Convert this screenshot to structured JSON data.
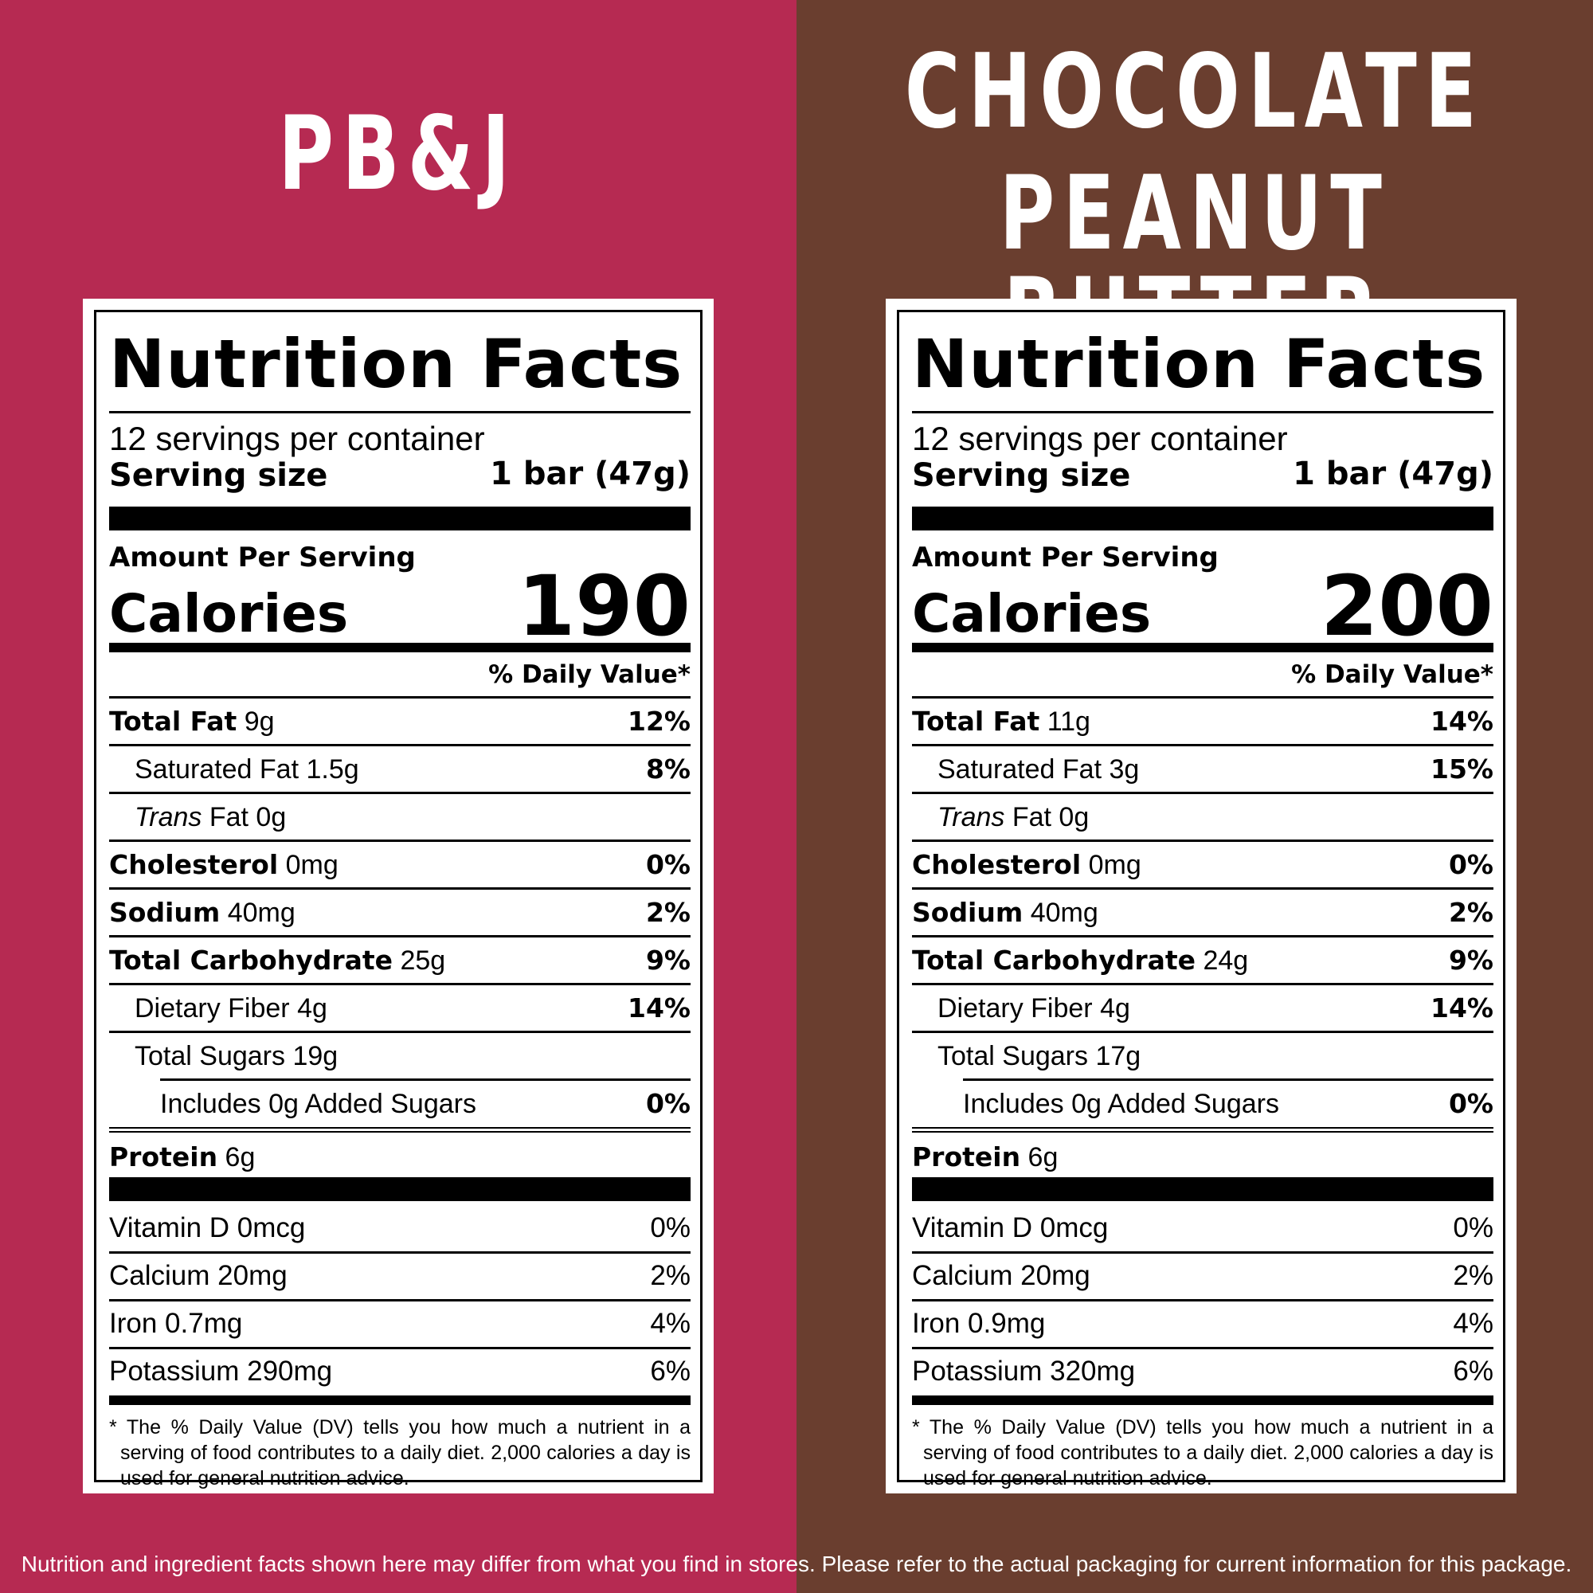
{
  "colors": {
    "left_bg": "#B62A52",
    "right_bg": "#6A3E2F"
  },
  "disclaimer": "Nutrition and ingredient facts shown here may differ from what you find in stores. Please refer to the actual packaging for current information for this package.",
  "common": {
    "nf_title": "Nutrition Facts",
    "amount_per_serving": "Amount Per Serving",
    "calories_label": "Calories",
    "dv_header": "% Daily Value*",
    "serving_size_label": "Serving size",
    "footnote": "* The % Daily Value (DV) tells you how much a nutrient in a serving of food contributes to a daily diet. 2,000 calories a day is used for general nutrition advice."
  },
  "products": [
    {
      "title_lines": [
        "PB&J"
      ],
      "servings_per_container": "12 servings per container",
      "serving_size": "1 bar (47g)",
      "calories": "190",
      "nutrients": [
        {
          "name": "Total Fat",
          "amount": "9g",
          "dv": "12%"
        },
        {
          "name": "Saturated Fat",
          "amount": "1.5g",
          "dv": "8%"
        },
        {
          "name": "Trans",
          "name2": "Fat",
          "amount": "0g",
          "dv": ""
        },
        {
          "name": "Cholesterol",
          "amount": "0mg",
          "dv": "0%"
        },
        {
          "name": "Sodium",
          "amount": "40mg",
          "dv": "2%"
        },
        {
          "name": "Total Carbohydrate",
          "amount": "25g",
          "dv": "9%"
        },
        {
          "name": "Dietary Fiber",
          "amount": "4g",
          "dv": "14%"
        },
        {
          "name": "Total Sugars",
          "amount": "19g",
          "dv": ""
        },
        {
          "name": "Includes 0g Added Sugars",
          "amount": "",
          "dv": "0%"
        },
        {
          "name": "Protein",
          "amount": "6g",
          "dv": ""
        }
      ],
      "vitamins": [
        {
          "name": "Vitamin D 0mcg",
          "dv": "0%"
        },
        {
          "name": "Calcium 20mg",
          "dv": "2%"
        },
        {
          "name": "Iron 0.7mg",
          "dv": "4%"
        },
        {
          "name": "Potassium 290mg",
          "dv": "6%"
        }
      ]
    },
    {
      "title_lines": [
        "CHOCOLATE",
        "PEANUT BUTTER"
      ],
      "servings_per_container": "12 servings per container",
      "serving_size": "1 bar (47g)",
      "calories": "200",
      "nutrients": [
        {
          "name": "Total Fat",
          "amount": "11g",
          "dv": "14%"
        },
        {
          "name": "Saturated Fat",
          "amount": "3g",
          "dv": "15%"
        },
        {
          "name": "Trans",
          "name2": "Fat",
          "amount": "0g",
          "dv": ""
        },
        {
          "name": "Cholesterol",
          "amount": "0mg",
          "dv": "0%"
        },
        {
          "name": "Sodium",
          "amount": "40mg",
          "dv": "2%"
        },
        {
          "name": "Total Carbohydrate",
          "amount": "24g",
          "dv": "9%"
        },
        {
          "name": "Dietary Fiber",
          "amount": "4g",
          "dv": "14%"
        },
        {
          "name": "Total Sugars",
          "amount": "17g",
          "dv": ""
        },
        {
          "name": "Includes 0g Added Sugars",
          "amount": "",
          "dv": "0%"
        },
        {
          "name": "Protein",
          "amount": "6g",
          "dv": ""
        }
      ],
      "vitamins": [
        {
          "name": "Vitamin D 0mcg",
          "dv": "0%"
        },
        {
          "name": "Calcium 20mg",
          "dv": "2%"
        },
        {
          "name": "Iron 0.9mg",
          "dv": "4%"
        },
        {
          "name": "Potassium 320mg",
          "dv": "6%"
        }
      ]
    }
  ]
}
